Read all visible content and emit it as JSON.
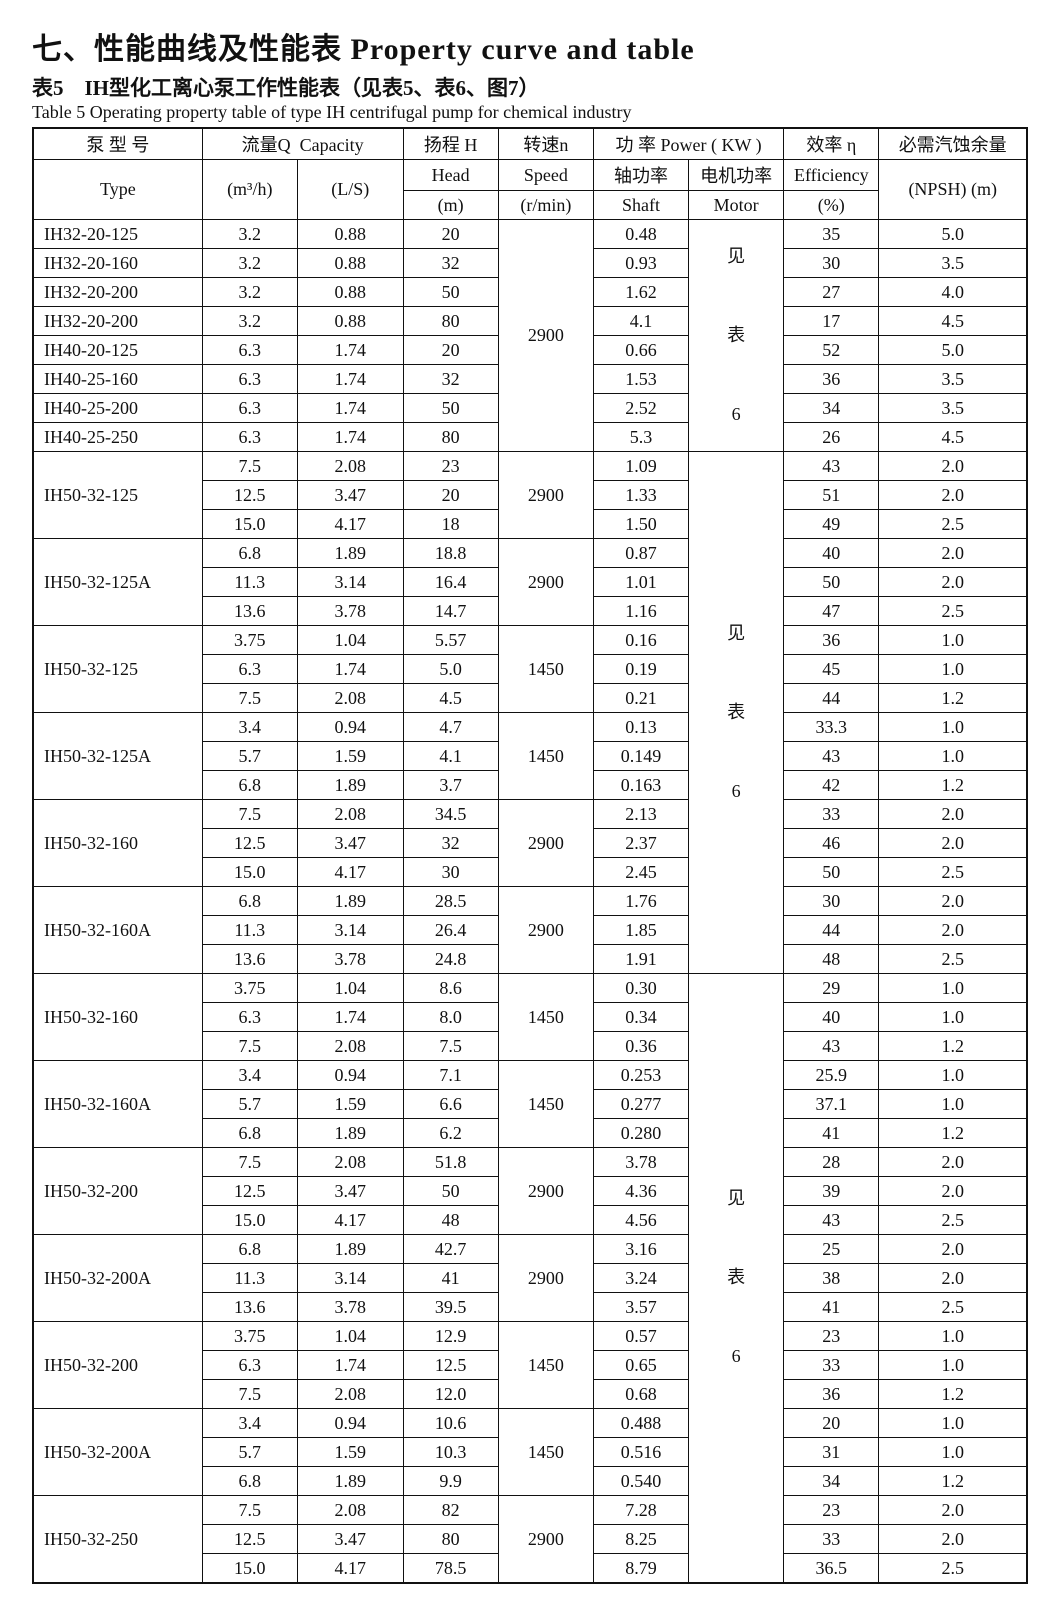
{
  "title": "七、性能曲线及性能表  Property curve and table",
  "subtitle_cn": "表5　IH型化工离心泵工作性能表（见表5、表6、图7）",
  "subtitle_en": "Table 5  Operating property table of type IH centrifugal pump for chemical industry",
  "headers": {
    "type_cn": "泵 型 号",
    "type_en": "Type",
    "flow_cn": "流量Q",
    "flow_en": "Capacity",
    "flow_u1": "(m³/h)",
    "flow_u2": "(L/S)",
    "head_cn": "扬程 H",
    "head_en": "Head",
    "head_u": "(m)",
    "speed_cn": "转速n",
    "speed_en": "Speed",
    "speed_u": "(r/min)",
    "power_cn": "功 率 Power ( KW )",
    "shaft_cn": "轴功率",
    "shaft_en": "Shaft",
    "motor_cn": "电机功率",
    "motor_en": "Motor",
    "eff_cn": "效率 η",
    "eff_en": "Efficiency",
    "eff_u": "(%)",
    "npsh_cn": "必需汽蚀余量",
    "npsh_en": "(NPSH)  (m)"
  },
  "motor_note": "见\n\n表\n\n6",
  "groups": [
    {
      "type": "IH32-20-125",
      "speed": "2900",
      "speed_span": 8,
      "motor_span": 8,
      "rows": [
        {
          "q1": "3.2",
          "q2": "0.88",
          "head": "20",
          "shaft": "0.48",
          "eff": "35",
          "npsh": "5.0"
        }
      ]
    },
    {
      "type": "IH32-20-160",
      "rows": [
        {
          "q1": "3.2",
          "q2": "0.88",
          "head": "32",
          "shaft": "0.93",
          "eff": "30",
          "npsh": "3.5"
        }
      ]
    },
    {
      "type": "IH32-20-200",
      "rows": [
        {
          "q1": "3.2",
          "q2": "0.88",
          "head": "50",
          "shaft": "1.62",
          "eff": "27",
          "npsh": "4.0"
        }
      ]
    },
    {
      "type": "IH32-20-200",
      "rows": [
        {
          "q1": "3.2",
          "q2": "0.88",
          "head": "80",
          "shaft": "4.1",
          "eff": "17",
          "npsh": "4.5"
        }
      ]
    },
    {
      "type": "IH40-20-125",
      "rows": [
        {
          "q1": "6.3",
          "q2": "1.74",
          "head": "20",
          "shaft": "0.66",
          "eff": "52",
          "npsh": "5.0"
        }
      ]
    },
    {
      "type": "IH40-25-160",
      "rows": [
        {
          "q1": "6.3",
          "q2": "1.74",
          "head": "32",
          "shaft": "1.53",
          "eff": "36",
          "npsh": "3.5"
        }
      ]
    },
    {
      "type": "IH40-25-200",
      "rows": [
        {
          "q1": "6.3",
          "q2": "1.74",
          "head": "50",
          "shaft": "2.52",
          "eff": "34",
          "npsh": "3.5"
        }
      ]
    },
    {
      "type": "IH40-25-250",
      "rows": [
        {
          "q1": "6.3",
          "q2": "1.74",
          "head": "80",
          "shaft": "5.3",
          "eff": "26",
          "npsh": "4.5"
        }
      ]
    },
    {
      "type": "IH50-32-125",
      "speed": "2900",
      "speed_span": 3,
      "motor_span": 18,
      "rows": [
        {
          "q1": "7.5",
          "q2": "2.08",
          "head": "23",
          "shaft": "1.09",
          "eff": "43",
          "npsh": "2.0"
        },
        {
          "q1": "12.5",
          "q2": "3.47",
          "head": "20",
          "shaft": "1.33",
          "eff": "51",
          "npsh": "2.0"
        },
        {
          "q1": "15.0",
          "q2": "4.17",
          "head": "18",
          "shaft": "1.50",
          "eff": "49",
          "npsh": "2.5"
        }
      ]
    },
    {
      "type": "IH50-32-125A",
      "speed": "2900",
      "speed_span": 3,
      "rows": [
        {
          "q1": "6.8",
          "q2": "1.89",
          "head": "18.8",
          "shaft": "0.87",
          "eff": "40",
          "npsh": "2.0"
        },
        {
          "q1": "11.3",
          "q2": "3.14",
          "head": "16.4",
          "shaft": "1.01",
          "eff": "50",
          "npsh": "2.0"
        },
        {
          "q1": "13.6",
          "q2": "3.78",
          "head": "14.7",
          "shaft": "1.16",
          "eff": "47",
          "npsh": "2.5"
        }
      ]
    },
    {
      "type": "IH50-32-125",
      "speed": "1450",
      "speed_span": 3,
      "rows": [
        {
          "q1": "3.75",
          "q2": "1.04",
          "head": "5.57",
          "shaft": "0.16",
          "eff": "36",
          "npsh": "1.0"
        },
        {
          "q1": "6.3",
          "q2": "1.74",
          "head": "5.0",
          "shaft": "0.19",
          "eff": "45",
          "npsh": "1.0"
        },
        {
          "q1": "7.5",
          "q2": "2.08",
          "head": "4.5",
          "shaft": "0.21",
          "eff": "44",
          "npsh": "1.2"
        }
      ]
    },
    {
      "type": "IH50-32-125A",
      "speed": "1450",
      "speed_span": 3,
      "rows": [
        {
          "q1": "3.4",
          "q2": "0.94",
          "head": "4.7",
          "shaft": "0.13",
          "eff": "33.3",
          "npsh": "1.0"
        },
        {
          "q1": "5.7",
          "q2": "1.59",
          "head": "4.1",
          "shaft": "0.149",
          "eff": "43",
          "npsh": "1.0"
        },
        {
          "q1": "6.8",
          "q2": "1.89",
          "head": "3.7",
          "shaft": "0.163",
          "eff": "42",
          "npsh": "1.2"
        }
      ]
    },
    {
      "type": "IH50-32-160",
      "speed": "2900",
      "speed_span": 3,
      "rows": [
        {
          "q1": "7.5",
          "q2": "2.08",
          "head": "34.5",
          "shaft": "2.13",
          "eff": "33",
          "npsh": "2.0"
        },
        {
          "q1": "12.5",
          "q2": "3.47",
          "head": "32",
          "shaft": "2.37",
          "eff": "46",
          "npsh": "2.0"
        },
        {
          "q1": "15.0",
          "q2": "4.17",
          "head": "30",
          "shaft": "2.45",
          "eff": "50",
          "npsh": "2.5"
        }
      ]
    },
    {
      "type": "IH50-32-160A",
      "speed": "2900",
      "speed_span": 3,
      "rows": [
        {
          "q1": "6.8",
          "q2": "1.89",
          "head": "28.5",
          "shaft": "1.76",
          "eff": "30",
          "npsh": "2.0"
        },
        {
          "q1": "11.3",
          "q2": "3.14",
          "head": "26.4",
          "shaft": "1.85",
          "eff": "44",
          "npsh": "2.0"
        },
        {
          "q1": "13.6",
          "q2": "3.78",
          "head": "24.8",
          "shaft": "1.91",
          "eff": "48",
          "npsh": "2.5"
        }
      ]
    },
    {
      "type": "IH50-32-160",
      "speed": "1450",
      "speed_span": 3,
      "motor_span": 21,
      "rows": [
        {
          "q1": "3.75",
          "q2": "1.04",
          "head": "8.6",
          "shaft": "0.30",
          "eff": "29",
          "npsh": "1.0"
        },
        {
          "q1": "6.3",
          "q2": "1.74",
          "head": "8.0",
          "shaft": "0.34",
          "eff": "40",
          "npsh": "1.0"
        },
        {
          "q1": "7.5",
          "q2": "2.08",
          "head": "7.5",
          "shaft": "0.36",
          "eff": "43",
          "npsh": "1.2"
        }
      ]
    },
    {
      "type": "IH50-32-160A",
      "speed": "1450",
      "speed_span": 3,
      "rows": [
        {
          "q1": "3.4",
          "q2": "0.94",
          "head": "7.1",
          "shaft": "0.253",
          "eff": "25.9",
          "npsh": "1.0"
        },
        {
          "q1": "5.7",
          "q2": "1.59",
          "head": "6.6",
          "shaft": "0.277",
          "eff": "37.1",
          "npsh": "1.0"
        },
        {
          "q1": "6.8",
          "q2": "1.89",
          "head": "6.2",
          "shaft": "0.280",
          "eff": "41",
          "npsh": "1.2"
        }
      ]
    },
    {
      "type": "IH50-32-200",
      "speed": "2900",
      "speed_span": 3,
      "rows": [
        {
          "q1": "7.5",
          "q2": "2.08",
          "head": "51.8",
          "shaft": "3.78",
          "eff": "28",
          "npsh": "2.0"
        },
        {
          "q1": "12.5",
          "q2": "3.47",
          "head": "50",
          "shaft": "4.36",
          "eff": "39",
          "npsh": "2.0"
        },
        {
          "q1": "15.0",
          "q2": "4.17",
          "head": "48",
          "shaft": "4.56",
          "eff": "43",
          "npsh": "2.5"
        }
      ]
    },
    {
      "type": "IH50-32-200A",
      "speed": "2900",
      "speed_span": 3,
      "rows": [
        {
          "q1": "6.8",
          "q2": "1.89",
          "head": "42.7",
          "shaft": "3.16",
          "eff": "25",
          "npsh": "2.0"
        },
        {
          "q1": "11.3",
          "q2": "3.14",
          "head": "41",
          "shaft": "3.24",
          "eff": "38",
          "npsh": "2.0"
        },
        {
          "q1": "13.6",
          "q2": "3.78",
          "head": "39.5",
          "shaft": "3.57",
          "eff": "41",
          "npsh": "2.5"
        }
      ]
    },
    {
      "type": "IH50-32-200",
      "speed": "1450",
      "speed_span": 3,
      "rows": [
        {
          "q1": "3.75",
          "q2": "1.04",
          "head": "12.9",
          "shaft": "0.57",
          "eff": "23",
          "npsh": "1.0"
        },
        {
          "q1": "6.3",
          "q2": "1.74",
          "head": "12.5",
          "shaft": "0.65",
          "eff": "33",
          "npsh": "1.0"
        },
        {
          "q1": "7.5",
          "q2": "2.08",
          "head": "12.0",
          "shaft": "0.68",
          "eff": "36",
          "npsh": "1.2"
        }
      ]
    },
    {
      "type": "IH50-32-200A",
      "speed": "1450",
      "speed_span": 3,
      "rows": [
        {
          "q1": "3.4",
          "q2": "0.94",
          "head": "10.6",
          "shaft": "0.488",
          "eff": "20",
          "npsh": "1.0"
        },
        {
          "q1": "5.7",
          "q2": "1.59",
          "head": "10.3",
          "shaft": "0.516",
          "eff": "31",
          "npsh": "1.0"
        },
        {
          "q1": "6.8",
          "q2": "1.89",
          "head": "9.9",
          "shaft": "0.540",
          "eff": "34",
          "npsh": "1.2"
        }
      ]
    },
    {
      "type": "IH50-32-250",
      "speed": "2900",
      "speed_span": 3,
      "rows": [
        {
          "q1": "7.5",
          "q2": "2.08",
          "head": "82",
          "shaft": "7.28",
          "eff": "23",
          "npsh": "2.0"
        },
        {
          "q1": "12.5",
          "q2": "3.47",
          "head": "80",
          "shaft": "8.25",
          "eff": "33",
          "npsh": "2.0"
        },
        {
          "q1": "15.0",
          "q2": "4.17",
          "head": "78.5",
          "shaft": "8.79",
          "eff": "36.5",
          "npsh": "2.5"
        }
      ]
    }
  ]
}
